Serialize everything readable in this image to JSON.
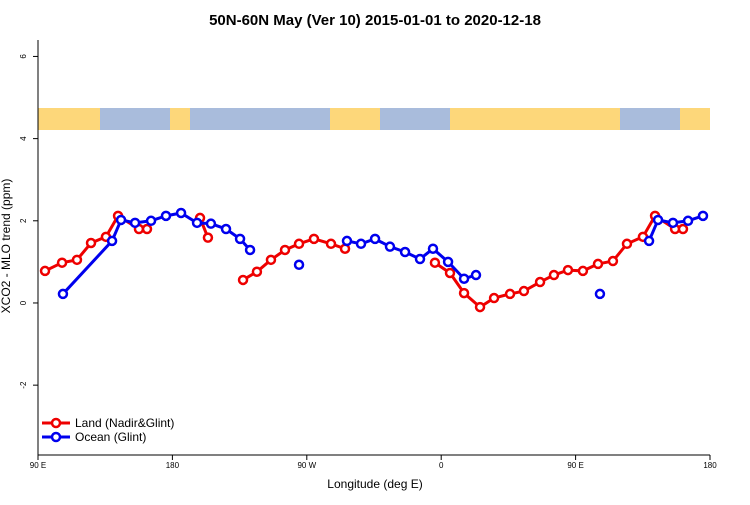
{
  "chart_data": {
    "type": "line",
    "title": "50N-60N May (Ver 10)   2015-01-01 to 2020-12-18",
    "x_label": "Longitude (deg E)",
    "y_label": "XCO2 - MLO trend (ppm)",
    "xlim": [
      90,
      540
    ],
    "ylim": [
      -3.7,
      6.4
    ],
    "xticks": [
      {
        "value": 90,
        "label": "90 E"
      },
      {
        "value": 180,
        "label": "180"
      },
      {
        "value": 270,
        "label": "90 W"
      },
      {
        "value": 360,
        "label": "0"
      },
      {
        "value": 450,
        "label": "90 E"
      },
      {
        "value": 540,
        "label": "180"
      }
    ],
    "yticks": [
      -2,
      0,
      2,
      4,
      6
    ],
    "legend": "bottom-left",
    "series": [
      {
        "name": "Land (Nadir&Glint)",
        "color": "#ee0000",
        "x": [
          94.7,
          106.1,
          116.1,
          125.5,
          135.5,
          143.6,
          157.6,
          163.0,
          180,
          198.5,
          203.8,
          215,
          227.3,
          236.6,
          246.0,
          255.4,
          264.8,
          274.8,
          286.2,
          295.6,
          330,
          355.8,
          365.9,
          375.3,
          386.0,
          395.4,
          406.1,
          415.4,
          426.2,
          435.5,
          444.9,
          454.9,
          465.0,
          475.0,
          484.4,
          495.1,
          503.2,
          516.6,
          521.9
        ],
        "values": [
          0.78,
          0.98,
          1.05,
          1.46,
          1.61,
          2.12,
          1.8,
          1.8,
          null,
          2.07,
          1.59,
          null,
          0.56,
          0.76,
          1.05,
          1.29,
          1.44,
          1.56,
          1.44,
          1.32,
          null,
          0.98,
          0.73,
          0.24,
          -0.1,
          0.12,
          0.22,
          0.29,
          0.51,
          0.68,
          0.8,
          0.78,
          0.95,
          1.02,
          1.44,
          1.61,
          2.12,
          1.8,
          1.8
        ]
      },
      {
        "name": "Ocean (Glint)",
        "color": "#0000ee",
        "x": [
          106.7,
          139.6,
          145.6,
          155.0,
          165.7,
          175.7,
          185.8,
          196.5,
          205.8,
          215.9,
          225.3,
          232.0,
          250,
          264.8,
          280,
          296.9,
          306.3,
          315.7,
          325.7,
          335.8,
          345.8,
          354.5,
          364.6,
          375.3,
          383.3,
          420,
          466.3,
          480,
          499.2,
          505.2,
          515.2,
          525.3,
          535.3
        ],
        "values": [
          0.22,
          1.51,
          2.02,
          1.95,
          2.0,
          2.12,
          2.19,
          1.95,
          1.93,
          1.8,
          1.56,
          1.29,
          null,
          0.93,
          null,
          1.51,
          1.44,
          1.56,
          1.37,
          1.24,
          1.07,
          1.32,
          1.0,
          0.59,
          0.68,
          null,
          0.22,
          null,
          1.51,
          2.02,
          1.95,
          2.0,
          2.12
        ]
      }
    ]
  }
}
